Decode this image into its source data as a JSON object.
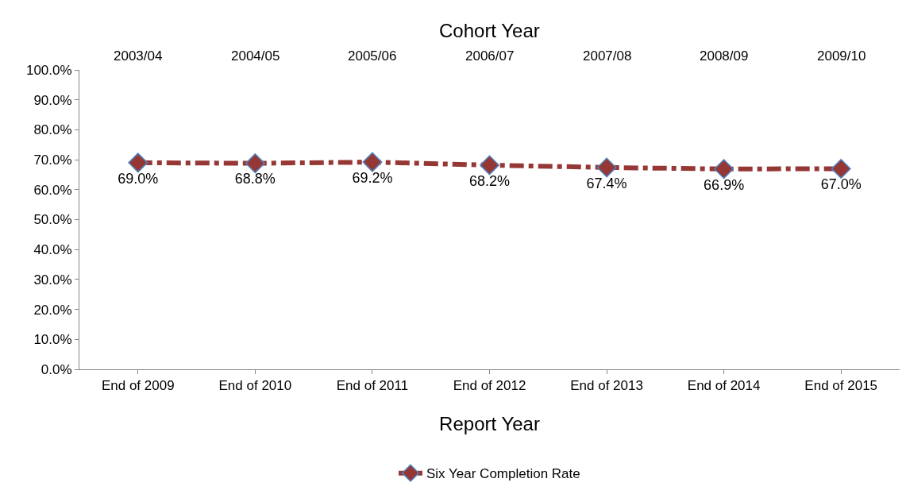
{
  "chart_data": {
    "type": "line",
    "xlabel": "Report Year",
    "x2label": "Cohort Year",
    "categories": [
      "End of 2009",
      "End of 2010",
      "End of 2011",
      "End of 2012",
      "End of 2013",
      "End of 2014",
      "End of 2015"
    ],
    "annotations": [
      "2003/04",
      "2004/05",
      "2005/06",
      "2006/07",
      "2007/08",
      "2008/09",
      "2009/10"
    ],
    "series": [
      {
        "name": "Six Year Completion Rate",
        "color": "#953735",
        "values": [
          69.0,
          68.8,
          69.2,
          68.2,
          67.4,
          66.9,
          67.0
        ],
        "value_labels": [
          "69.0%",
          "68.8%",
          "69.2%",
          "68.2%",
          "67.4%",
          "66.9%",
          "67.0%"
        ]
      }
    ],
    "ylim": [
      0,
      100
    ],
    "yticks": [
      {
        "value": 0,
        "label": "0.0%"
      },
      {
        "value": 10,
        "label": "10.0%"
      },
      {
        "value": 20,
        "label": "20.0%"
      },
      {
        "value": 30,
        "label": "30.0%"
      },
      {
        "value": 40,
        "label": "40.0%"
      },
      {
        "value": 50,
        "label": "50.0%"
      },
      {
        "value": 60,
        "label": "60.0%"
      },
      {
        "value": 70,
        "label": "70.0%"
      },
      {
        "value": 80,
        "label": "80.0%"
      },
      {
        "value": 90,
        "label": "90.0%"
      },
      {
        "value": 100,
        "label": "100.0%"
      }
    ],
    "legend": "bottom",
    "marker": "diamond",
    "line_style": "dashed"
  }
}
